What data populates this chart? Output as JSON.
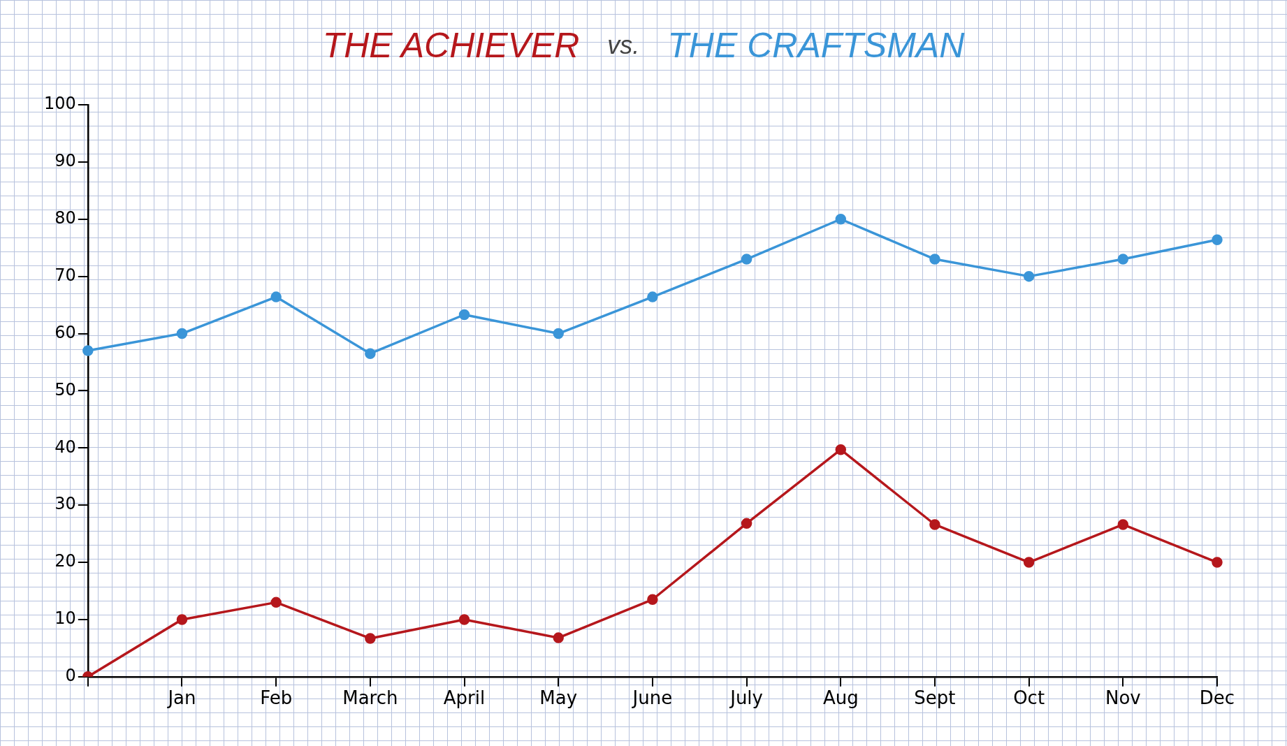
{
  "chart_data": {
    "type": "line",
    "title": "vs.",
    "categories": [
      null,
      "Jan",
      "Feb",
      "March",
      "April",
      "May",
      "June",
      "July",
      "Aug",
      "Sept",
      "Oct",
      "Nov",
      "Dec"
    ],
    "series": [
      {
        "name": "THE ACHIEVER",
        "color": "#b5171c",
        "values": [
          0,
          10,
          13,
          6.7,
          10,
          6.8,
          13.5,
          26.8,
          39.7,
          26.6,
          20,
          26.6,
          20
        ]
      },
      {
        "name": "THE CRAFTSMAN",
        "color": "#3a95d8",
        "values": [
          57,
          60,
          66.4,
          56.5,
          63.3,
          60,
          66.4,
          73,
          80,
          73,
          70,
          73,
          76.4
        ]
      }
    ],
    "ylim": [
      0,
      100
    ],
    "yticks": [
      0,
      10,
      20,
      30,
      40,
      50,
      60,
      70,
      80,
      90,
      100
    ],
    "marker": "circle",
    "line_style": "solid"
  }
}
